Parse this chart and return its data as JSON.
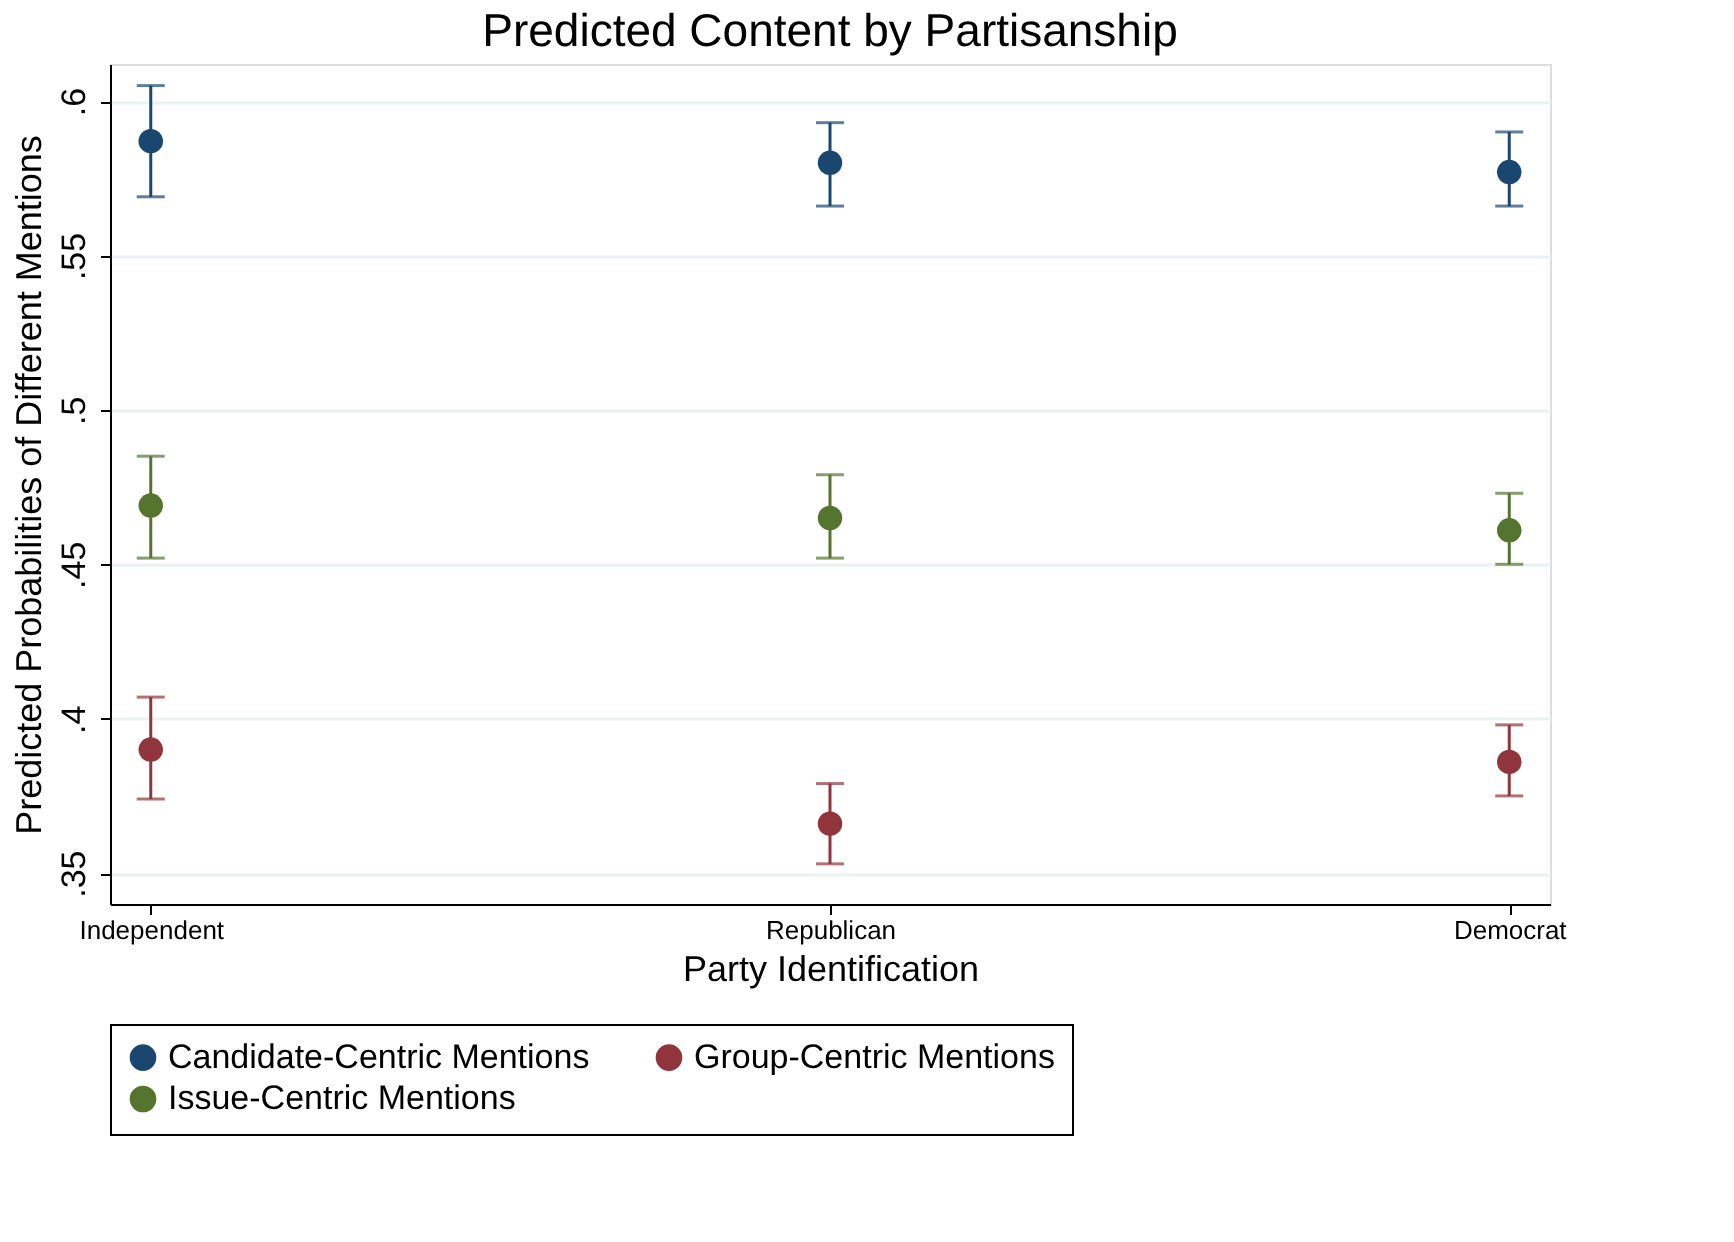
{
  "chart_data": {
    "type": "scatter",
    "title": "Predicted Content by Partisanship",
    "xlabel": "Party Identification",
    "ylabel": "Predicted Probabilities of Different Mentions",
    "categories": [
      "Independent",
      "Republican",
      "Democrat"
    ],
    "series": [
      {
        "name": "Candidate-Centric Mentions",
        "color": "#1a476f",
        "values": [
          0.587,
          0.58,
          0.577
        ],
        "errors": [
          [
            0.569,
            0.605
          ],
          [
            0.566,
            0.593
          ],
          [
            0.566,
            0.59
          ]
        ]
      },
      {
        "name": "Group-Centric Mentions",
        "color": "#90353b",
        "values": [
          0.39,
          0.366,
          0.386
        ],
        "errors": [
          [
            0.374,
            0.407
          ],
          [
            0.353,
            0.379
          ],
          [
            0.375,
            0.398
          ]
        ]
      },
      {
        "name": "Issue-Centric Mentions",
        "color": "#55752f",
        "values": [
          0.469,
          0.465,
          0.461
        ],
        "errors": [
          [
            0.452,
            0.485
          ],
          [
            0.452,
            0.479
          ],
          [
            0.45,
            0.473
          ]
        ]
      }
    ],
    "ylim": [
      0.34,
      0.612
    ],
    "yticks": [
      {
        "value": 0.35,
        "label": ".35"
      },
      {
        "value": 0.4,
        "label": ".4"
      },
      {
        "value": 0.45,
        "label": ".45"
      },
      {
        "value": 0.5,
        "label": ".5"
      },
      {
        "value": 0.55,
        "label": ".55"
      },
      {
        "value": 0.6,
        "label": ".6"
      }
    ],
    "grid": "y",
    "legend": "bottom",
    "marker": "circle"
  }
}
